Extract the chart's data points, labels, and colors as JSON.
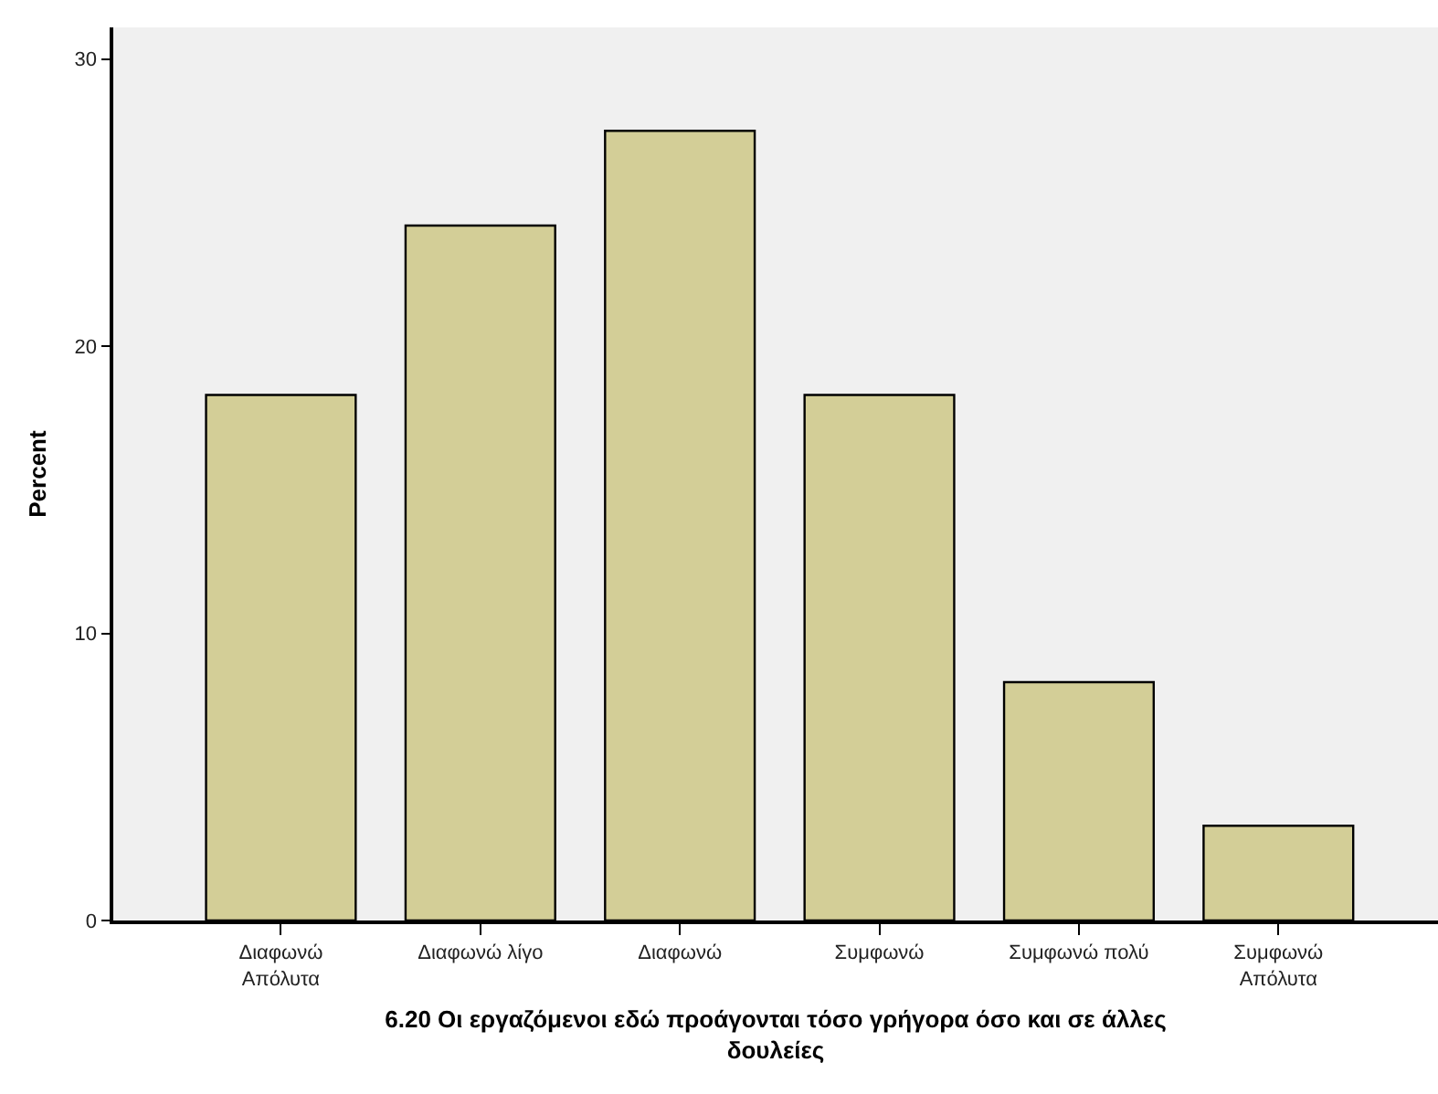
{
  "chart_data": {
    "type": "bar",
    "xlabel": "6.20 Οι εργαζόμενοι εδώ προάγονται τόσο γρήγορα όσο και σε άλλες δουλείες",
    "ylabel": "Percent",
    "categories": [
      "Διαφωνώ Απόλυτα",
      "Διαφωνώ λίγο",
      "Διαφωνώ",
      "Συμφωνώ",
      "Συμφωνώ πολύ",
      "Συμφωνώ Απόλυτα"
    ],
    "values": [
      18.3,
      24.2,
      27.5,
      18.3,
      8.3,
      3.3
    ],
    "color": "#d3ce97",
    "ylim": [
      0,
      31.1
    ],
    "yticks": [
      0,
      10,
      20,
      30
    ],
    "grid": false
  }
}
